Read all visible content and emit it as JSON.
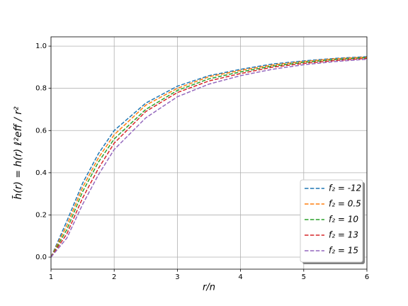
{
  "chart_data": {
    "type": "line",
    "xlabel": "r/n",
    "ylabel": "h̄(r) = h(r) ℓ²eff / r²",
    "x": [
      1,
      1.25,
      1.5,
      1.75,
      2,
      2.5,
      3,
      3.5,
      4,
      4.5,
      5,
      5.5,
      6
    ],
    "series": [
      {
        "name": "f₂ = -12",
        "color": "#1f77b4",
        "values": [
          0,
          0.17,
          0.35,
          0.49,
          0.6,
          0.73,
          0.81,
          0.86,
          0.89,
          0.915,
          0.93,
          0.942,
          0.95
        ]
      },
      {
        "name": "f₂ = 0.5",
        "color": "#ff7f0e",
        "values": [
          0,
          0.15,
          0.33,
          0.47,
          0.58,
          0.72,
          0.8,
          0.855,
          0.885,
          0.91,
          0.927,
          0.94,
          0.948
        ]
      },
      {
        "name": "f₂ = 10",
        "color": "#2ca02c",
        "values": [
          0,
          0.13,
          0.31,
          0.45,
          0.56,
          0.7,
          0.79,
          0.845,
          0.878,
          0.905,
          0.923,
          0.936,
          0.945
        ]
      },
      {
        "name": "f₂ = 13",
        "color": "#d62728",
        "values": [
          0,
          0.11,
          0.28,
          0.42,
          0.54,
          0.69,
          0.78,
          0.835,
          0.87,
          0.9,
          0.918,
          0.932,
          0.942
        ]
      },
      {
        "name": "f₂ = 15",
        "color": "#9467bd",
        "values": [
          0,
          0.09,
          0.25,
          0.39,
          0.51,
          0.66,
          0.76,
          0.82,
          0.86,
          0.89,
          0.912,
          0.927,
          0.938
        ]
      }
    ],
    "xlim": [
      1,
      6
    ],
    "xticks": [
      1,
      2,
      3,
      4,
      5,
      6
    ],
    "ylim": [
      -0.057,
      1.044
    ],
    "yticks": [
      {
        "value": 0,
        "label": "0.0"
      },
      0.2,
      0.4,
      0.6,
      0.8,
      {
        "value": 1,
        "label": "1.0"
      }
    ],
    "grid": true,
    "legend": "lower right",
    "linestyle": "dashed"
  }
}
